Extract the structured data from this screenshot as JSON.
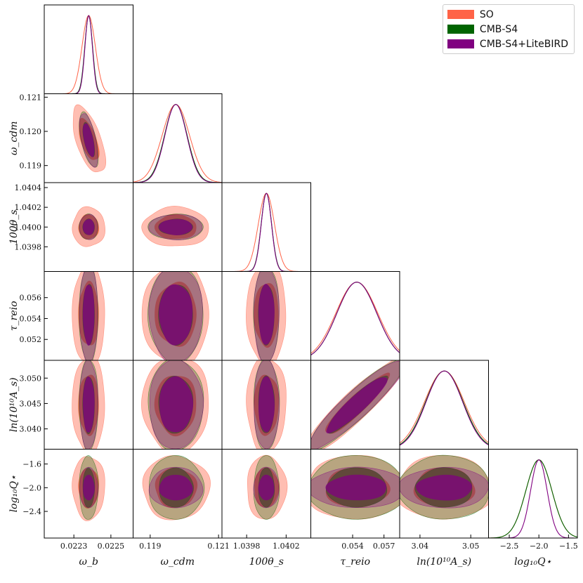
{
  "chart_data": {
    "type": "triangle-corner",
    "legend": [
      {
        "name": "SO",
        "color": "#ff6347"
      },
      {
        "name": "CMB-S4",
        "color": "#006400"
      },
      {
        "name": "CMB-S4+LiteBIRD",
        "color": "#800080"
      }
    ],
    "params": [
      {
        "label": "ω_b",
        "mean": 0.02238,
        "sd": {
          "SO": 3.6e-05,
          "CMB-S4": 2.1e-05,
          "CMB-S4+LiteBIRD": 2e-05
        },
        "range": [
          0.02214,
          0.02262
        ],
        "ticks": [
          0.0223,
          0.0225
        ],
        "tick_labels": [
          "0.0223",
          "0.0225"
        ]
      },
      {
        "label": "ω_cdm",
        "mean": 0.11975,
        "sd": {
          "SO": 0.0004,
          "CMB-S4": 0.00033,
          "CMB-S4+LiteBIRD": 0.00032
        },
        "range": [
          0.1185,
          0.1211
        ],
        "ticks": [
          0.119,
          0.12,
          0.121
        ],
        "tick_labels": [
          "0.119",
          "0.120",
          "0.121"
        ]
      },
      {
        "label": "100θ_s",
        "mean": 1.04,
        "sd": {
          "SO": 8.2e-05,
          "CMB-S4": 5.3e-05,
          "CMB-S4+LiteBIRD": 5.2e-05
        },
        "range": [
          1.03955,
          1.04045
        ],
        "ticks": [
          1.0398,
          1.04,
          1.0402,
          1.0404
        ],
        "tick_labels": [
          "1.0398",
          "1.0400",
          "1.0402",
          "1.0404"
        ]
      },
      {
        "label": "τ_reio",
        "mean": 0.0544,
        "sd": {
          "SO": 0.002,
          "CMB-S4": 0.0019,
          "CMB-S4+LiteBIRD": 0.0019
        },
        "range": [
          0.05,
          0.0585
        ],
        "ticks": [
          0.052,
          0.054,
          0.056
        ],
        "tick_labels": [
          "0.052",
          "0.054",
          "0.056"
        ]
      },
      {
        "label": "ln(10¹⁰A_s)",
        "mean": 3.0448,
        "sd": {
          "SO": 0.0039,
          "CMB-S4": 0.0037,
          "CMB-S4+LiteBIRD": 0.0036
        },
        "range": [
          3.036,
          3.0535
        ],
        "ticks": [
          3.04,
          3.045,
          3.05
        ],
        "tick_labels": [
          "3.040",
          "3.045",
          "3.050"
        ]
      },
      {
        "label": "log₁₀Q⋆",
        "mean": -2.0,
        "sd": {
          "SO": 0.22,
          "CMB-S4": 0.22,
          "CMB-S4+LiteBIRD": 0.14
        },
        "range": [
          -2.85,
          -1.35
        ],
        "ticks": [
          -2.4,
          -2.0,
          -1.6
        ],
        "tick_labels": [
          "−2.4",
          "−2.0",
          "−1.6"
        ]
      }
    ],
    "x_tick_labels": [
      [
        "0.0223",
        "0.0225"
      ],
      [
        "0.119",
        "0.121"
      ],
      [
        "1.0398",
        "1.0402"
      ],
      [
        "0.054",
        "0.057"
      ],
      [
        "3.04",
        "3.05"
      ],
      [
        "−2.5",
        "−2.0",
        "−1.5"
      ]
    ],
    "x_ticks": [
      [
        0.0223,
        0.0225
      ],
      [
        0.119,
        0.121
      ],
      [
        1.0398,
        1.0402
      ],
      [
        0.054,
        0.057
      ],
      [
        3.04,
        3.05
      ],
      [
        -2.5,
        -2.0,
        -1.5
      ]
    ],
    "correlations": [
      [
        0,
        1,
        -0.6
      ],
      [
        0,
        2,
        0.0
      ],
      [
        0,
        3,
        0.0
      ],
      [
        0,
        4,
        0.0
      ],
      [
        0,
        5,
        0.0
      ],
      [
        1,
        2,
        0.0
      ],
      [
        1,
        3,
        0.0
      ],
      [
        1,
        4,
        0.0
      ],
      [
        1,
        5,
        0.0
      ],
      [
        2,
        3,
        0.0
      ],
      [
        2,
        4,
        0.0
      ],
      [
        2,
        5,
        0.0
      ],
      [
        3,
        4,
        0.92
      ],
      [
        3,
        5,
        0.0
      ],
      [
        4,
        5,
        0.0
      ]
    ],
    "contours": "68% and 95% confidence regions",
    "xlabel": "",
    "ylabel": ""
  }
}
